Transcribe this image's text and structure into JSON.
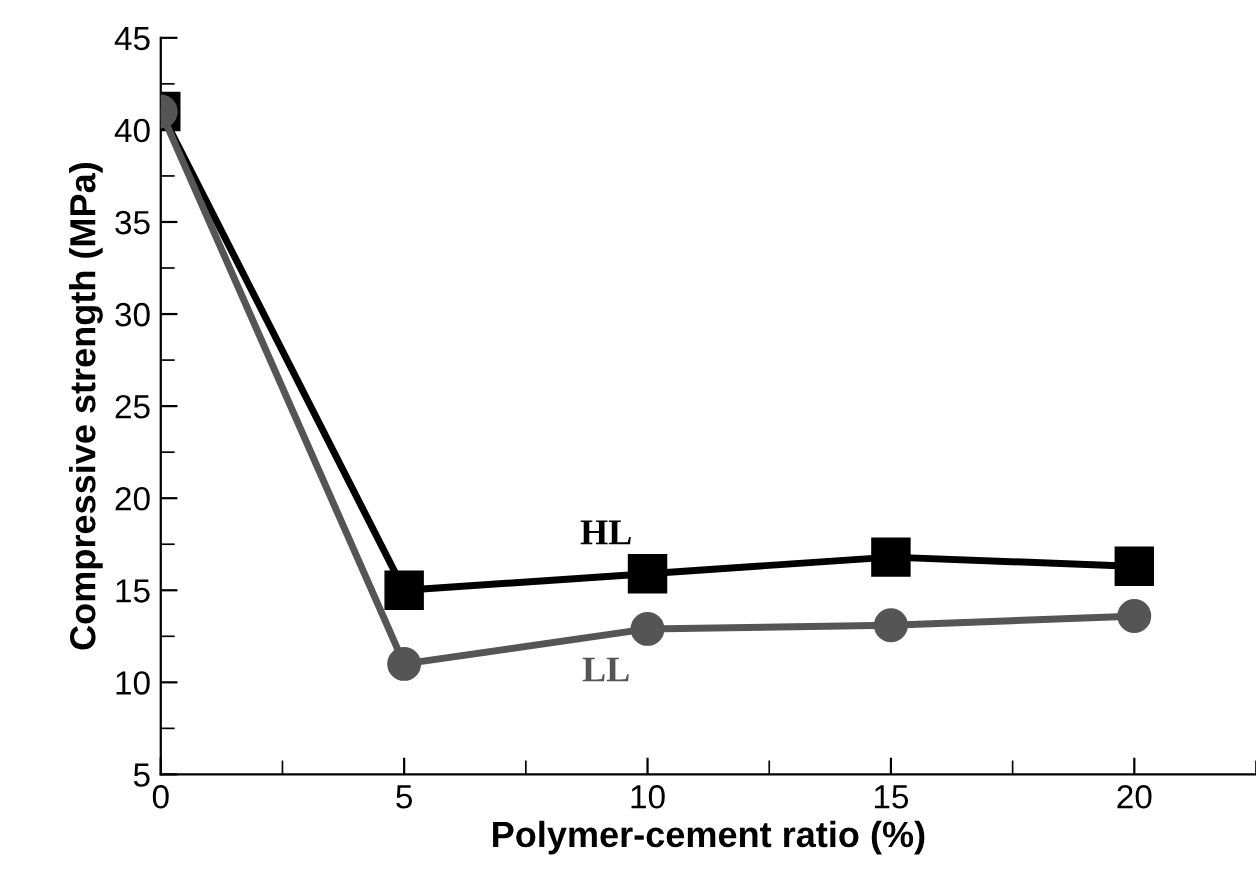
{
  "chart_data": {
    "type": "line",
    "xlabel": "Polymer-cement ratio (%)",
    "ylabel": "Compressive strength (MPa)",
    "x": [
      0,
      5,
      10,
      15,
      20
    ],
    "series": [
      {
        "name": "HL",
        "color": "#000000",
        "marker": "square",
        "values": [
          41,
          15,
          15.9,
          16.8,
          16.3
        ]
      },
      {
        "name": "LL",
        "color": "#555555",
        "marker": "circle",
        "values": [
          41,
          11,
          12.9,
          13.1,
          13.6
        ]
      }
    ],
    "xlim": [
      0,
      22.5
    ],
    "xticks": [
      0,
      5,
      10,
      15,
      20
    ],
    "ylim": [
      5,
      45
    ],
    "yticks": [
      5,
      10,
      15,
      20,
      25,
      30,
      35,
      40,
      45
    ],
    "grid": false,
    "legend": false,
    "line_style": "solid"
  }
}
